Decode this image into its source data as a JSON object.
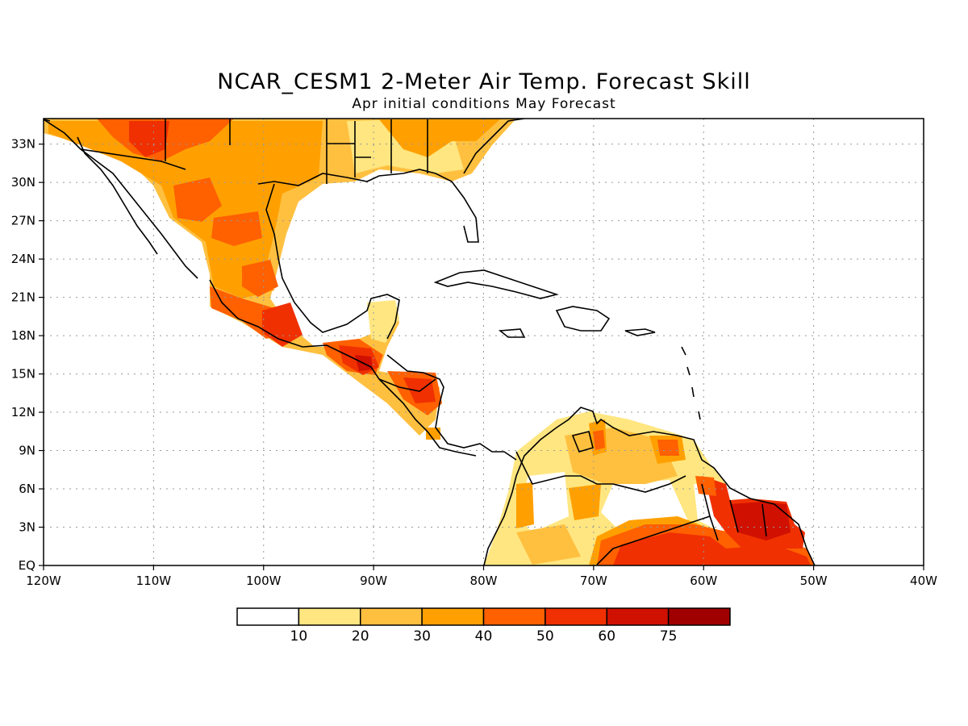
{
  "title": "NCAR_CESM1 2-Meter Air Temp. Forecast Skill",
  "subtitle": "Apr initial conditions  May Forecast",
  "map": {
    "lon_range": [
      -120,
      -40
    ],
    "lat_range": [
      0,
      35
    ],
    "lat_ticks": [
      {
        "value": 33,
        "label": "33N"
      },
      {
        "value": 30,
        "label": "30N"
      },
      {
        "value": 27,
        "label": "27N"
      },
      {
        "value": 24,
        "label": "24N"
      },
      {
        "value": 21,
        "label": "21N"
      },
      {
        "value": 18,
        "label": "18N"
      },
      {
        "value": 15,
        "label": "15N"
      },
      {
        "value": 12,
        "label": "12N"
      },
      {
        "value": 9,
        "label": "9N"
      },
      {
        "value": 6,
        "label": "6N"
      },
      {
        "value": 3,
        "label": "3N"
      },
      {
        "value": 0,
        "label": "EQ"
      }
    ],
    "lon_ticks": [
      {
        "value": -120,
        "label": "120W"
      },
      {
        "value": -110,
        "label": "110W"
      },
      {
        "value": -100,
        "label": "100W"
      },
      {
        "value": -90,
        "label": "90W"
      },
      {
        "value": -80,
        "label": "80W"
      },
      {
        "value": -70,
        "label": "70W"
      },
      {
        "value": -60,
        "label": "60W"
      },
      {
        "value": -50,
        "label": "50W"
      },
      {
        "value": -40,
        "label": "40W"
      }
    ],
    "grid": "dotted"
  },
  "colorbar": {
    "bins": [
      "#ffffff",
      "#ffe680",
      "#ffc040",
      "#ffa000",
      "#ff6000",
      "#f03000",
      "#d01000",
      "#a00000"
    ],
    "labels": [
      "10",
      "20",
      "30",
      "40",
      "50",
      "60",
      "75"
    ]
  },
  "skill_regions": [
    {
      "name": "northern-mexico",
      "level": 3
    },
    {
      "name": "southern-us",
      "level": 3
    },
    {
      "name": "sierra-madre-core",
      "level": 4
    },
    {
      "name": "southern-mexico",
      "level": 5
    },
    {
      "name": "guatemala",
      "level": 6
    },
    {
      "name": "honduras",
      "level": 5
    },
    {
      "name": "northern-south-america",
      "level": 2
    },
    {
      "name": "guianas",
      "level": 6
    },
    {
      "name": "amazon-north",
      "level": 5
    }
  ]
}
